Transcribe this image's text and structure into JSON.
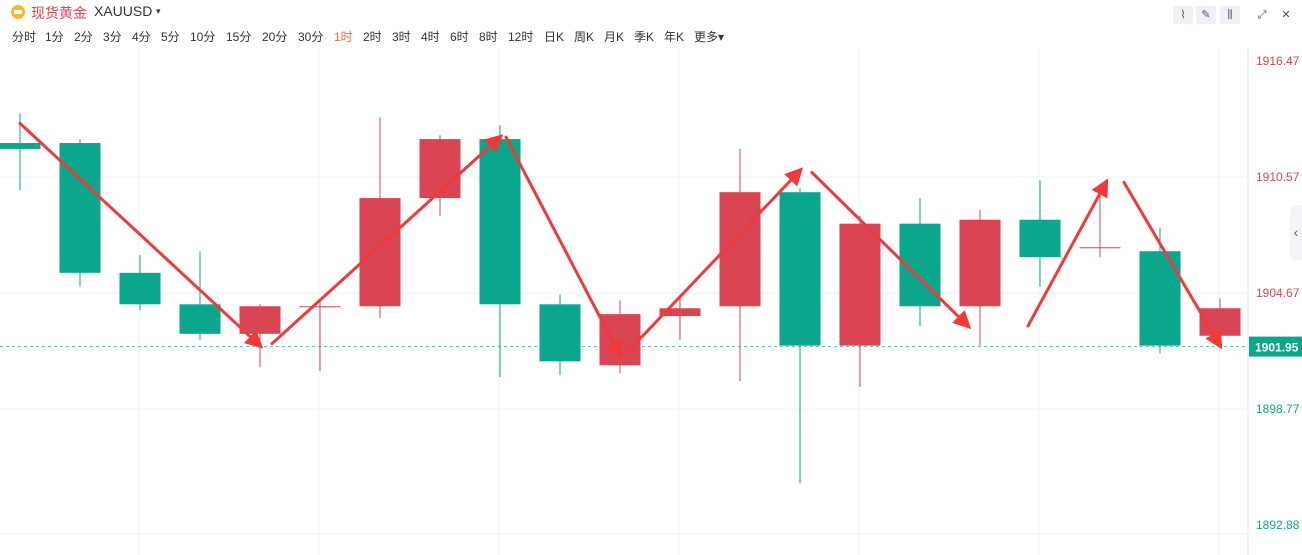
{
  "header": {
    "symbol_name": "现货黄金",
    "symbol_code": "XAUUSD",
    "caret": "▾",
    "toolbar": [
      {
        "icon": "line-style-icon",
        "glyph": "⌇"
      },
      {
        "icon": "draw-pencil-icon",
        "glyph": "✎"
      },
      {
        "icon": "candle-type-icon",
        "glyph": "⫼"
      },
      {
        "icon": "expand-icon",
        "glyph": "⤢"
      },
      {
        "icon": "close-icon",
        "glyph": "✕"
      }
    ]
  },
  "timeframes": [
    "分时",
    "1分",
    "2分",
    "3分",
    "4分",
    "5分",
    "10分",
    "15分",
    "20分",
    "30分",
    "1时",
    "2时",
    "3时",
    "4时",
    "6时",
    "8时",
    "12时",
    "日K",
    "周K",
    "月K",
    "季K",
    "年K",
    "更多▾"
  ],
  "active_timeframe": "1时",
  "colors": {
    "up": "#d94552",
    "down": "#0ba78c",
    "arrow": "#f03a3a",
    "grid": "#eef1f5",
    "current_price_bg": "#0ba78c"
  },
  "side_handle": "‹",
  "chart_data": {
    "type": "candlestick",
    "ylim": [
      1892.88,
      1916.47
    ],
    "y_ticks": [
      "1916.47",
      "1910.57",
      "1904.67",
      "1898.77",
      "1892.88"
    ],
    "current_price": "1901.95",
    "candles": [
      {
        "open": 1912.3,
        "close": 1912.0,
        "high": 1913.8,
        "low": 1909.9
      },
      {
        "open": 1912.3,
        "close": 1905.7,
        "high": 1912.5,
        "low": 1905.0
      },
      {
        "open": 1905.7,
        "close": 1904.1,
        "high": 1906.6,
        "low": 1903.8
      },
      {
        "open": 1904.1,
        "close": 1902.6,
        "high": 1906.8,
        "low": 1902.3
      },
      {
        "open": 1902.6,
        "close": 1904.0,
        "high": 1904.1,
        "low": 1900.9
      },
      {
        "open": 1904.0,
        "close": 1904.0,
        "high": 1904.4,
        "low": 1900.7
      },
      {
        "open": 1904.0,
        "close": 1909.5,
        "high": 1913.6,
        "low": 1903.4
      },
      {
        "open": 1909.5,
        "close": 1912.5,
        "high": 1912.7,
        "low": 1908.6
      },
      {
        "open": 1912.5,
        "close": 1904.1,
        "high": 1913.2,
        "low": 1900.4
      },
      {
        "open": 1904.1,
        "close": 1901.2,
        "high": 1904.6,
        "low": 1900.5
      },
      {
        "open": 1901.0,
        "close": 1903.6,
        "high": 1904.3,
        "low": 1900.6
      },
      {
        "open": 1903.5,
        "close": 1903.9,
        "high": 1904.4,
        "low": 1902.3
      },
      {
        "open": 1904.0,
        "close": 1909.8,
        "high": 1912.0,
        "low": 1900.2
      },
      {
        "open": 1909.8,
        "close": 1902.0,
        "high": 1910.0,
        "low": 1895.0
      },
      {
        "open": 1902.0,
        "close": 1908.2,
        "high": 1908.6,
        "low": 1899.9
      },
      {
        "open": 1908.2,
        "close": 1904.0,
        "high": 1909.5,
        "low": 1903.0
      },
      {
        "open": 1904.0,
        "close": 1908.4,
        "high": 1908.9,
        "low": 1902.0
      },
      {
        "open": 1908.4,
        "close": 1906.5,
        "high": 1910.4,
        "low": 1905.0
      },
      {
        "open": 1907.0,
        "close": 1907.0,
        "high": 1910.2,
        "low": 1906.5
      },
      {
        "open": 1906.8,
        "close": 1902.0,
        "high": 1908.0,
        "low": 1901.6
      },
      {
        "open": 1902.5,
        "close": 1903.9,
        "high": 1904.4,
        "low": 1902.4
      }
    ],
    "annotations": [
      {
        "from": [
          0,
          1913.3
        ],
        "to": [
          4.0,
          1902.0
        ]
      },
      {
        "from": [
          4.2,
          1902.1
        ],
        "to": [
          8.0,
          1912.6
        ]
      },
      {
        "from": [
          8.1,
          1912.6
        ],
        "to": [
          10.0,
          1901.5
        ]
      },
      {
        "from": [
          10.1,
          1901.6
        ],
        "to": [
          13.0,
          1910.9
        ]
      },
      {
        "from": [
          13.2,
          1910.8
        ],
        "to": [
          15.8,
          1903.0
        ]
      },
      {
        "from": [
          16.8,
          1903.0
        ],
        "to": [
          18.1,
          1910.3
        ]
      },
      {
        "from": [
          18.4,
          1910.3
        ],
        "to": [
          20.0,
          1902.0
        ]
      }
    ]
  }
}
